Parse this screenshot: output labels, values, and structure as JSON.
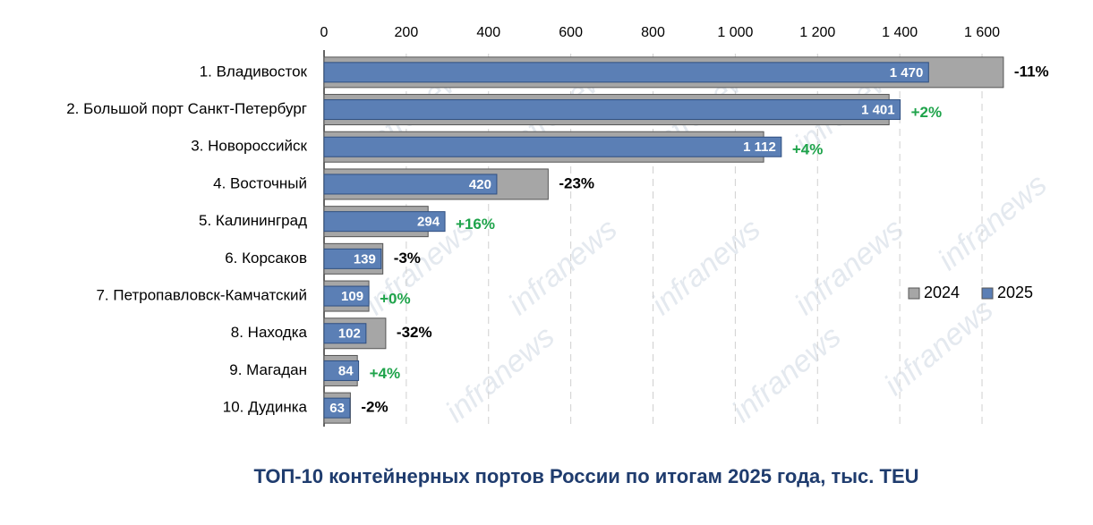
{
  "chart_data": {
    "type": "overlap-bar-h",
    "title": "ТОП-10 контейнерных портов России по итогам 2025 года, тыс. TEU",
    "watermark": "infranews",
    "categories": [
      "1. Владивосток",
      "2. Большой порт Санкт-Петербург",
      "3. Новороссийск",
      "4. Восточный",
      "5. Калининград",
      "6. Корсаков",
      "7. Петропавловск-Камчатский",
      "8. Находка",
      "9. Магадан",
      "10. Дудинка"
    ],
    "series": [
      {
        "name": "2024",
        "color": "#a6a6a6",
        "values": [
          1652,
          1374,
          1069,
          545,
          253,
          143,
          109,
          150,
          81,
          64
        ]
      },
      {
        "name": "2025",
        "color": "#5b7fb5",
        "values": [
          1470,
          1401,
          1112,
          420,
          294,
          139,
          109,
          102,
          84,
          63
        ],
        "value_labels": [
          "1 470",
          "1 401",
          "1 112",
          "420",
          "294",
          "139",
          "109",
          "102",
          "84",
          "63"
        ]
      }
    ],
    "change_labels": [
      "-11%",
      "+2%",
      "+4%",
      "-23%",
      "+16%",
      "-3%",
      "+0%",
      "-32%",
      "+4%",
      "-2%"
    ],
    "xlim": [
      0,
      1650
    ],
    "xticks": [
      0,
      200,
      400,
      600,
      800,
      {
        "value": 1000,
        "label": "1 000"
      },
      {
        "value": 1200,
        "label": "1 200"
      },
      {
        "value": 1400,
        "label": "1 400"
      },
      {
        "value": 1600,
        "label": "1 600"
      }
    ],
    "grid": true,
    "legend": "right"
  }
}
